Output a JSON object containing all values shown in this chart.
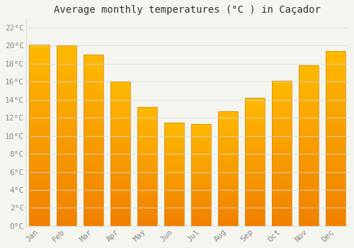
{
  "title": "Average monthly temperatures (°C ) in Caçador",
  "months": [
    "Jan",
    "Feb",
    "Mar",
    "Apr",
    "May",
    "Jun",
    "Jul",
    "Aug",
    "Sep",
    "Oct",
    "Nov",
    "Dec"
  ],
  "values": [
    20.1,
    20.0,
    19.0,
    16.0,
    13.2,
    11.5,
    11.3,
    12.7,
    14.2,
    16.1,
    17.8,
    19.4
  ],
  "bar_color_top": "#FFB900",
  "bar_color_bottom": "#F08000",
  "bar_edge_color": "#CC8800",
  "background_color": "#F5F5F0",
  "plot_bg_color": "#F5F5F0",
  "grid_color": "#DDDDDD",
  "ytick_labels": [
    "0°C",
    "2°C",
    "4°C",
    "6°C",
    "8°C",
    "10°C",
    "12°C",
    "14°C",
    "16°C",
    "18°C",
    "20°C",
    "22°C"
  ],
  "ytick_values": [
    0,
    2,
    4,
    6,
    8,
    10,
    12,
    14,
    16,
    18,
    20,
    22
  ],
  "ylim": [
    0,
    23
  ],
  "title_fontsize": 10,
  "tick_fontsize": 8,
  "tick_color": "#888888",
  "title_color": "#333333",
  "font_family": "monospace",
  "bar_width": 0.75
}
